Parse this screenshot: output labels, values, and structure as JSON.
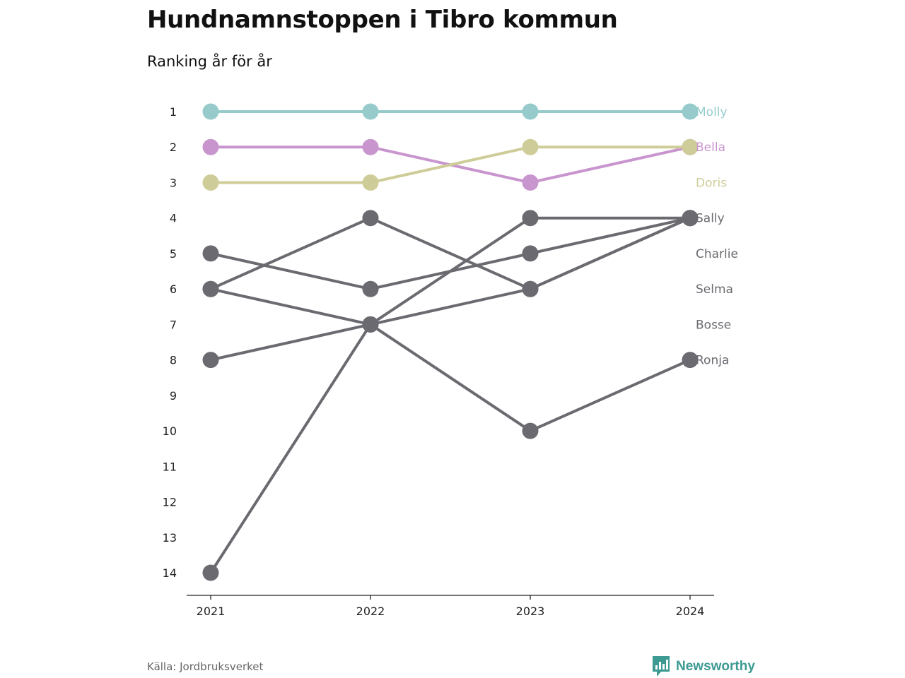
{
  "header": {
    "title": "Hundnamnstoppen i Tibro kommun",
    "subtitle": "Ranking år för år"
  },
  "footer": {
    "source": "Källa: Jordbruksverket",
    "brand": "Newsworthy",
    "brand_icon": "bar-chart-speech-bubble-icon"
  },
  "colors": {
    "Molly": "#97cbcb",
    "Bella": "#c995ce",
    "Doris": "#cecd99",
    "other": "#6b6a70",
    "axis": "#222222",
    "brand": "#3d9a93"
  },
  "chart_data": {
    "type": "line",
    "subtype": "bump",
    "x": [
      "2021",
      "2022",
      "2023",
      "2024"
    ],
    "y_ticks": [
      "1",
      "2",
      "3",
      "4",
      "5",
      "6",
      "7",
      "8",
      "9",
      "10",
      "11",
      "12",
      "13",
      "14"
    ],
    "ylim": [
      1,
      14
    ],
    "y_reversed": true,
    "grid": false,
    "series": [
      {
        "name": "Molly",
        "values": [
          1,
          1,
          1,
          1
        ],
        "color": "#97cbcb"
      },
      {
        "name": "Bella",
        "values": [
          2,
          2,
          3,
          2
        ],
        "color": "#c995ce"
      },
      {
        "name": "Doris",
        "values": [
          3,
          3,
          2,
          2
        ],
        "color": "#cecd99"
      },
      {
        "name": "Sally",
        "values": [
          14,
          7,
          4,
          4
        ],
        "color": "#6b6a70"
      },
      {
        "name": "Charlie",
        "values": [
          6,
          4,
          6,
          4
        ],
        "color": "#6b6a70"
      },
      {
        "name": "Selma",
        "values": [
          5,
          6,
          5,
          4
        ],
        "color": "#6b6a70"
      },
      {
        "name": "Bosse",
        "values": [
          8,
          7,
          6,
          4
        ],
        "color": "#6b6a70"
      },
      {
        "name": "Ronja",
        "values": [
          6,
          7,
          10,
          8
        ],
        "color": "#6b6a70"
      }
    ],
    "end_labels": [
      "Molly",
      "Bella",
      "Doris",
      "Sally",
      "Charlie",
      "Selma",
      "Bosse",
      "Ronja"
    ]
  }
}
